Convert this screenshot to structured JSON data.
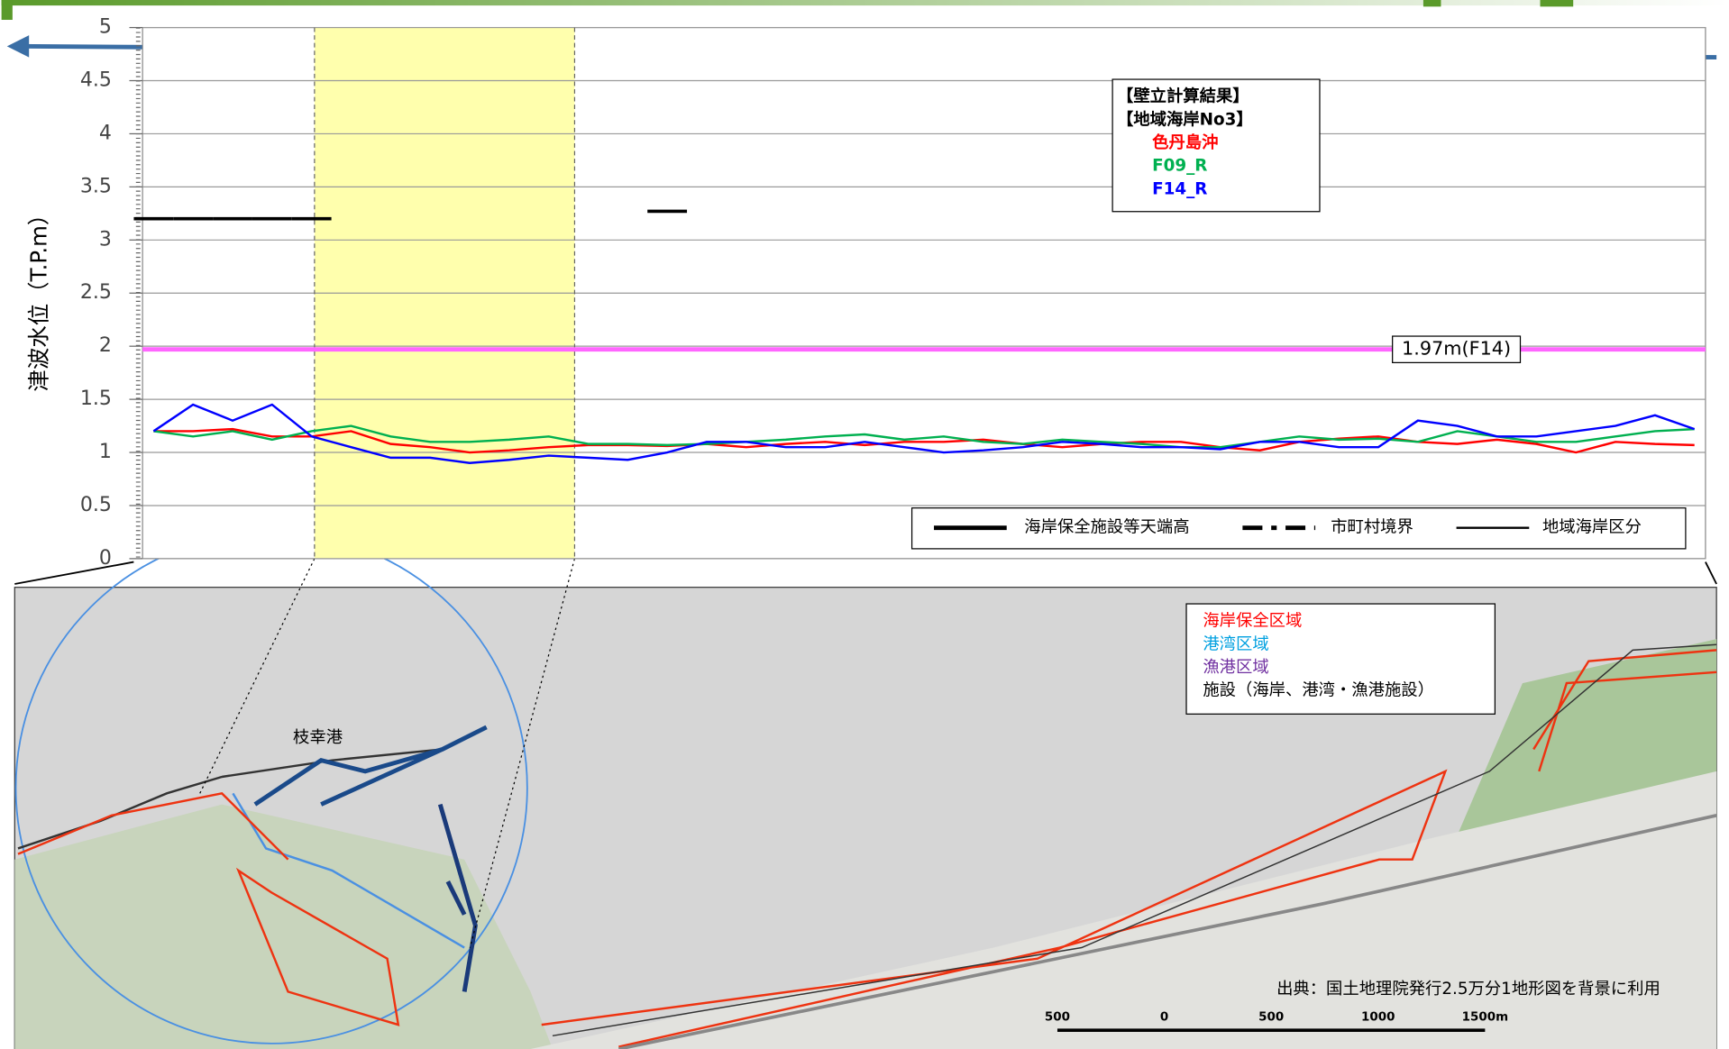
{
  "chart_data": {
    "type": "line",
    "y_label": "津波水位（T.P.m）",
    "badge": "3",
    "categories": [
      null,
      null,
      null,
      null,
      null,
      null,
      null,
      null,
      null,
      null,
      null,
      null,
      null,
      null,
      null,
      null,
      null,
      null,
      null,
      null,
      null,
      null,
      null,
      null,
      null,
      null,
      null,
      null,
      null,
      null,
      null,
      null,
      null,
      null,
      null,
      null,
      null,
      null,
      null,
      null
    ],
    "ylim": [
      0,
      5
    ],
    "yticks": [
      0,
      0.5,
      1,
      1.5,
      2,
      2.5,
      3,
      3.5,
      4,
      4.5,
      5
    ],
    "grid": true,
    "legend_title": [
      "【壁立計算結果】",
      "【地域海岸No3】"
    ],
    "series": [
      {
        "name": "色丹島沖",
        "color": "#ff0000",
        "values": [
          1.2,
          1.2,
          1.22,
          1.15,
          1.15,
          1.2,
          1.08,
          1.05,
          1.0,
          1.02,
          1.05,
          1.07,
          1.07,
          1.06,
          1.08,
          1.05,
          1.08,
          1.1,
          1.07,
          1.1,
          1.1,
          1.12,
          1.08,
          1.05,
          1.08,
          1.1,
          1.1,
          1.05,
          1.02,
          1.1,
          1.13,
          1.15,
          1.1,
          1.08,
          1.12,
          1.08,
          1.0,
          1.1,
          1.08,
          1.07
        ]
      },
      {
        "name": "F09_R",
        "color": "#00b050",
        "values": [
          1.2,
          1.15,
          1.2,
          1.12,
          1.2,
          1.25,
          1.15,
          1.1,
          1.1,
          1.12,
          1.15,
          1.08,
          1.08,
          1.07,
          1.08,
          1.1,
          1.12,
          1.15,
          1.17,
          1.12,
          1.15,
          1.1,
          1.08,
          1.12,
          1.1,
          1.08,
          1.05,
          1.05,
          1.1,
          1.15,
          1.12,
          1.13,
          1.1,
          1.2,
          1.15,
          1.1,
          1.1,
          1.15,
          1.2,
          1.22
        ]
      },
      {
        "name": "F14_R",
        "color": "#0000ff",
        "values": [
          1.2,
          1.45,
          1.3,
          1.45,
          1.15,
          1.05,
          0.95,
          0.95,
          0.9,
          0.93,
          0.97,
          0.95,
          0.93,
          1.0,
          1.1,
          1.1,
          1.05,
          1.05,
          1.1,
          1.05,
          1.0,
          1.02,
          1.05,
          1.1,
          1.08,
          1.05,
          1.05,
          1.03,
          1.1,
          1.1,
          1.05,
          1.05,
          1.3,
          1.25,
          1.15,
          1.15,
          1.2,
          1.25,
          1.35,
          1.22
        ]
      }
    ],
    "crest": {
      "name": "海岸保全施設等天端高",
      "values": [
        3.2,
        3.2,
        3.2,
        3.2,
        3.2,
        null,
        null,
        null,
        null,
        null,
        null,
        null,
        null,
        3.27,
        null,
        null,
        null,
        null,
        null,
        null,
        null,
        null,
        null,
        null,
        null,
        null,
        null,
        null,
        null,
        null,
        null,
        null,
        null,
        null,
        null,
        null,
        null,
        null,
        null,
        null
      ]
    },
    "reference": {
      "value": 1.97,
      "label": "1.97m(F14)",
      "color": "#ff66ff"
    },
    "line_legend": [
      "市町村境界",
      "地域海岸区分"
    ]
  },
  "map": {
    "port": "枝幸港",
    "legend": [
      {
        "label": "海岸保全区域",
        "color": "#ff0000"
      },
      {
        "label": "港湾区域",
        "color": "#00a0e0"
      },
      {
        "label": "漁港区域",
        "color": "#7030a0"
      },
      {
        "label": "施設（海岸、港湾・漁港施設）",
        "color": "#000000"
      }
    ],
    "source": "出典：国土地理院発行2.5万分1地形図を背景に利用",
    "scale": [
      "500",
      "0",
      "500",
      "1000",
      "1500m"
    ]
  }
}
